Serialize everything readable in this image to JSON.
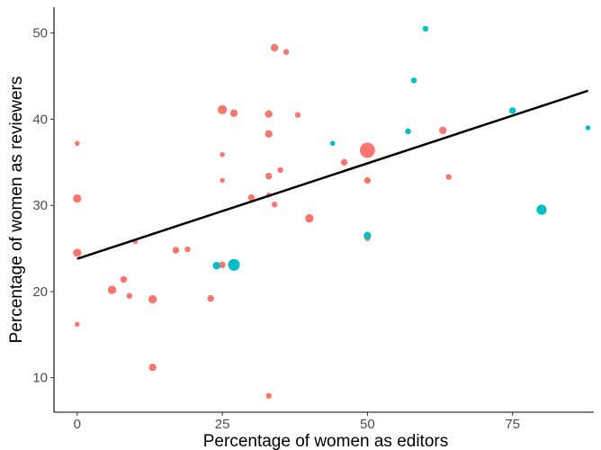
{
  "chart_data": {
    "type": "scatter",
    "xlabel": "Percentage of women as editors",
    "ylabel": "Percentage of women as reviewers",
    "xlim": [
      -4,
      89
    ],
    "ylim": [
      6,
      53
    ],
    "xticks": [
      0,
      25,
      50,
      75
    ],
    "yticks": [
      10,
      20,
      30,
      40,
      50
    ],
    "grid": false,
    "legend": "none",
    "series_colors": [
      "#F8766D",
      "#00BFC4"
    ],
    "series": [
      {
        "color": "#F8766D",
        "points": [
          {
            "x": 0,
            "y": 37.2,
            "size": 1
          },
          {
            "x": 0,
            "y": 30.8,
            "size": 3
          },
          {
            "x": 0,
            "y": 24.5,
            "size": 3
          },
          {
            "x": 0,
            "y": 16.2,
            "size": 1
          },
          {
            "x": 6,
            "y": 20.2,
            "size": 3
          },
          {
            "x": 8,
            "y": 21.4,
            "size": 2
          },
          {
            "x": 9,
            "y": 19.5,
            "size": 1.5
          },
          {
            "x": 10,
            "y": 25.8,
            "size": 1
          },
          {
            "x": 13,
            "y": 19.1,
            "size": 3
          },
          {
            "x": 13,
            "y": 11.2,
            "size": 2.5
          },
          {
            "x": 17,
            "y": 24.8,
            "size": 2
          },
          {
            "x": 19,
            "y": 24.9,
            "size": 1.5
          },
          {
            "x": 23,
            "y": 19.2,
            "size": 2
          },
          {
            "x": 25,
            "y": 41.1,
            "size": 3.5
          },
          {
            "x": 25,
            "y": 35.9,
            "size": 1
          },
          {
            "x": 25,
            "y": 32.9,
            "size": 1
          },
          {
            "x": 25,
            "y": 23.1,
            "size": 2
          },
          {
            "x": 27,
            "y": 40.7,
            "size": 2.5
          },
          {
            "x": 30,
            "y": 30.9,
            "size": 2
          },
          {
            "x": 33,
            "y": 40.6,
            "size": 2.5
          },
          {
            "x": 33,
            "y": 38.3,
            "size": 2.5
          },
          {
            "x": 33,
            "y": 33.4,
            "size": 2
          },
          {
            "x": 33,
            "y": 31.2,
            "size": 1
          },
          {
            "x": 33,
            "y": 7.9,
            "size": 1.5
          },
          {
            "x": 34,
            "y": 48.3,
            "size": 2.5
          },
          {
            "x": 34,
            "y": 30.1,
            "size": 1.5
          },
          {
            "x": 35,
            "y": 34.1,
            "size": 1.5
          },
          {
            "x": 36,
            "y": 47.8,
            "size": 1.5
          },
          {
            "x": 38,
            "y": 40.5,
            "size": 1.5
          },
          {
            "x": 40,
            "y": 28.5,
            "size": 3
          },
          {
            "x": 46,
            "y": 35.0,
            "size": 2
          },
          {
            "x": 50,
            "y": 36.4,
            "size": 7
          },
          {
            "x": 50,
            "y": 32.9,
            "size": 2
          },
          {
            "x": 50,
            "y": 26.2,
            "size": 1.5
          },
          {
            "x": 63,
            "y": 38.7,
            "size": 2.5
          },
          {
            "x": 64,
            "y": 33.3,
            "size": 1.5
          }
        ]
      },
      {
        "color": "#00BFC4",
        "points": [
          {
            "x": 24,
            "y": 23.0,
            "size": 2.5
          },
          {
            "x": 27,
            "y": 23.1,
            "size": 5
          },
          {
            "x": 44,
            "y": 37.2,
            "size": 1
          },
          {
            "x": 50,
            "y": 26.5,
            "size": 2.5
          },
          {
            "x": 57,
            "y": 38.6,
            "size": 1.5
          },
          {
            "x": 58,
            "y": 44.5,
            "size": 1.5
          },
          {
            "x": 60,
            "y": 50.5,
            "size": 1.5
          },
          {
            "x": 75,
            "y": 41.0,
            "size": 2
          },
          {
            "x": 80,
            "y": 29.5,
            "size": 4
          },
          {
            "x": 88,
            "y": 39.0,
            "size": 1
          }
        ]
      }
    ],
    "trendline": {
      "color": "#000000",
      "x": [
        0,
        88
      ],
      "y": [
        23.8,
        43.3
      ]
    }
  }
}
